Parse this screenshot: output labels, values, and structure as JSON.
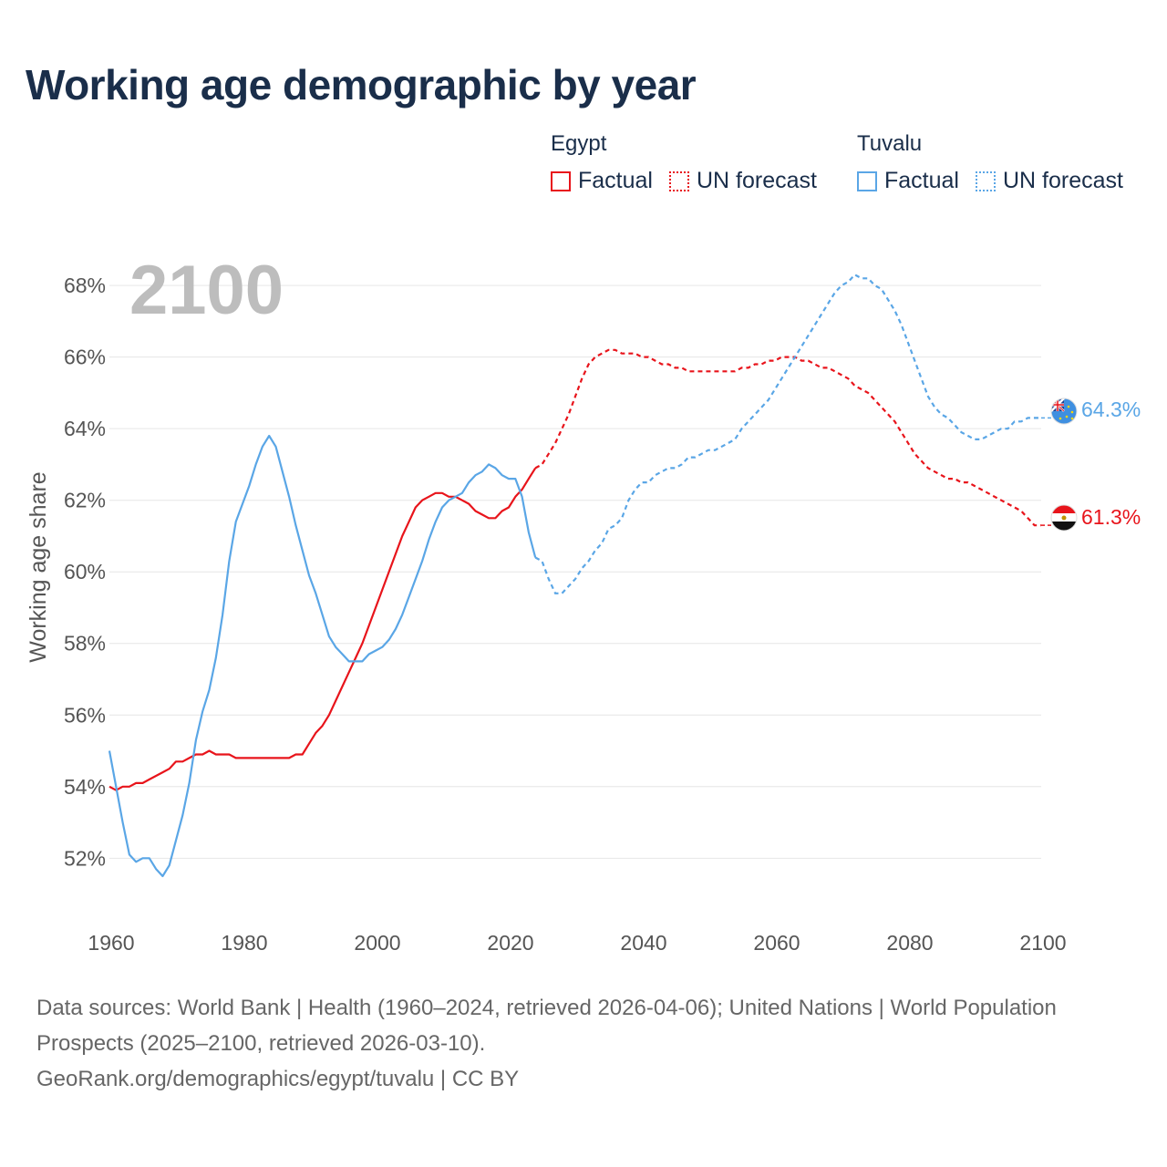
{
  "title": "Working age demographic by year",
  "year_overlay": "2100",
  "legend": {
    "groups": [
      {
        "name": "Egypt",
        "factual": "Factual",
        "forecast": "UN forecast",
        "color": "#e8141b"
      },
      {
        "name": "Tuvalu",
        "factual": "Factual",
        "forecast": "UN forecast",
        "color": "#5aa6e6"
      }
    ]
  },
  "source": {
    "line1": "Data sources: World Bank | Health (1960–2024, retrieved 2026-04-06); United Nations | World Population Prospects (2025–2100, retrieved 2026-03-10).",
    "line2": "GeoRank.org/demographics/egypt/tuvalu | CC BY"
  },
  "chart_data": {
    "type": "line",
    "ylabel": "Working age share",
    "xlabel": "",
    "xlim": [
      1960,
      2100
    ],
    "ylim": [
      50.2,
      69.2
    ],
    "x_ticks": [
      1960,
      1980,
      2000,
      2020,
      2040,
      2060,
      2080,
      2100
    ],
    "y_ticks": [
      52,
      54,
      56,
      58,
      60,
      62,
      64,
      66,
      68
    ],
    "y_tick_suffix": "%",
    "factual_end_year": 2024,
    "series": [
      {
        "name": "Egypt",
        "color": "#e8141b",
        "end_label": "61.3%",
        "points": [
          [
            1960,
            54.0
          ],
          [
            1961,
            53.9
          ],
          [
            1962,
            54.0
          ],
          [
            1963,
            54.0
          ],
          [
            1964,
            54.1
          ],
          [
            1965,
            54.1
          ],
          [
            1966,
            54.2
          ],
          [
            1967,
            54.3
          ],
          [
            1968,
            54.4
          ],
          [
            1969,
            54.5
          ],
          [
            1970,
            54.7
          ],
          [
            1971,
            54.7
          ],
          [
            1972,
            54.8
          ],
          [
            1973,
            54.9
          ],
          [
            1974,
            54.9
          ],
          [
            1975,
            55.0
          ],
          [
            1976,
            54.9
          ],
          [
            1977,
            54.9
          ],
          [
            1978,
            54.9
          ],
          [
            1979,
            54.8
          ],
          [
            1980,
            54.8
          ],
          [
            1981,
            54.8
          ],
          [
            1982,
            54.8
          ],
          [
            1983,
            54.8
          ],
          [
            1984,
            54.8
          ],
          [
            1985,
            54.8
          ],
          [
            1986,
            54.8
          ],
          [
            1987,
            54.8
          ],
          [
            1988,
            54.9
          ],
          [
            1989,
            54.9
          ],
          [
            1990,
            55.2
          ],
          [
            1991,
            55.5
          ],
          [
            1992,
            55.7
          ],
          [
            1993,
            56.0
          ],
          [
            1994,
            56.4
          ],
          [
            1995,
            56.8
          ],
          [
            1996,
            57.2
          ],
          [
            1997,
            57.6
          ],
          [
            1998,
            58.0
          ],
          [
            1999,
            58.5
          ],
          [
            2000,
            59.0
          ],
          [
            2001,
            59.5
          ],
          [
            2002,
            60.0
          ],
          [
            2003,
            60.5
          ],
          [
            2004,
            61.0
          ],
          [
            2005,
            61.4
          ],
          [
            2006,
            61.8
          ],
          [
            2007,
            62.0
          ],
          [
            2008,
            62.1
          ],
          [
            2009,
            62.2
          ],
          [
            2010,
            62.2
          ],
          [
            2011,
            62.1
          ],
          [
            2012,
            62.1
          ],
          [
            2013,
            62.0
          ],
          [
            2014,
            61.9
          ],
          [
            2015,
            61.7
          ],
          [
            2016,
            61.6
          ],
          [
            2017,
            61.5
          ],
          [
            2018,
            61.5
          ],
          [
            2019,
            61.7
          ],
          [
            2020,
            61.8
          ],
          [
            2021,
            62.1
          ],
          [
            2022,
            62.3
          ],
          [
            2023,
            62.6
          ],
          [
            2024,
            62.9
          ],
          [
            2025,
            63.0
          ],
          [
            2026,
            63.3
          ],
          [
            2027,
            63.6
          ],
          [
            2028,
            64.0
          ],
          [
            2029,
            64.4
          ],
          [
            2030,
            64.9
          ],
          [
            2031,
            65.4
          ],
          [
            2032,
            65.8
          ],
          [
            2033,
            66.0
          ],
          [
            2034,
            66.1
          ],
          [
            2035,
            66.2
          ],
          [
            2036,
            66.2
          ],
          [
            2037,
            66.1
          ],
          [
            2038,
            66.1
          ],
          [
            2039,
            66.1
          ],
          [
            2040,
            66.0
          ],
          [
            2041,
            66.0
          ],
          [
            2042,
            65.9
          ],
          [
            2043,
            65.8
          ],
          [
            2044,
            65.8
          ],
          [
            2045,
            65.7
          ],
          [
            2046,
            65.7
          ],
          [
            2047,
            65.6
          ],
          [
            2048,
            65.6
          ],
          [
            2049,
            65.6
          ],
          [
            2050,
            65.6
          ],
          [
            2051,
            65.6
          ],
          [
            2052,
            65.6
          ],
          [
            2053,
            65.6
          ],
          [
            2054,
            65.6
          ],
          [
            2055,
            65.7
          ],
          [
            2056,
            65.7
          ],
          [
            2057,
            65.8
          ],
          [
            2058,
            65.8
          ],
          [
            2059,
            65.9
          ],
          [
            2060,
            65.9
          ],
          [
            2061,
            66.0
          ],
          [
            2062,
            66.0
          ],
          [
            2063,
            66.0
          ],
          [
            2064,
            65.9
          ],
          [
            2065,
            65.9
          ],
          [
            2066,
            65.8
          ],
          [
            2067,
            65.7
          ],
          [
            2068,
            65.7
          ],
          [
            2069,
            65.6
          ],
          [
            2070,
            65.5
          ],
          [
            2071,
            65.4
          ],
          [
            2072,
            65.2
          ],
          [
            2073,
            65.1
          ],
          [
            2074,
            65.0
          ],
          [
            2075,
            64.8
          ],
          [
            2076,
            64.6
          ],
          [
            2077,
            64.4
          ],
          [
            2078,
            64.2
          ],
          [
            2079,
            63.9
          ],
          [
            2080,
            63.6
          ],
          [
            2081,
            63.3
          ],
          [
            2082,
            63.1
          ],
          [
            2083,
            62.9
          ],
          [
            2084,
            62.8
          ],
          [
            2085,
            62.7
          ],
          [
            2086,
            62.6
          ],
          [
            2087,
            62.6
          ],
          [
            2088,
            62.5
          ],
          [
            2089,
            62.5
          ],
          [
            2090,
            62.4
          ],
          [
            2091,
            62.3
          ],
          [
            2092,
            62.2
          ],
          [
            2093,
            62.1
          ],
          [
            2094,
            62.0
          ],
          [
            2095,
            61.9
          ],
          [
            2096,
            61.8
          ],
          [
            2097,
            61.7
          ],
          [
            2098,
            61.5
          ],
          [
            2099,
            61.3
          ],
          [
            2100,
            61.3
          ]
        ]
      },
      {
        "name": "Tuvalu",
        "color": "#5aa6e6",
        "end_label": "64.3%",
        "points": [
          [
            1960,
            55.0
          ],
          [
            1961,
            54.0
          ],
          [
            1962,
            53.0
          ],
          [
            1963,
            52.1
          ],
          [
            1964,
            51.9
          ],
          [
            1965,
            52.0
          ],
          [
            1966,
            52.0
          ],
          [
            1967,
            51.7
          ],
          [
            1968,
            51.5
          ],
          [
            1969,
            51.8
          ],
          [
            1970,
            52.5
          ],
          [
            1971,
            53.2
          ],
          [
            1972,
            54.1
          ],
          [
            1973,
            55.3
          ],
          [
            1974,
            56.1
          ],
          [
            1975,
            56.7
          ],
          [
            1976,
            57.6
          ],
          [
            1977,
            58.8
          ],
          [
            1978,
            60.3
          ],
          [
            1979,
            61.4
          ],
          [
            1980,
            61.9
          ],
          [
            1981,
            62.4
          ],
          [
            1982,
            63.0
          ],
          [
            1983,
            63.5
          ],
          [
            1984,
            63.8
          ],
          [
            1985,
            63.5
          ],
          [
            1986,
            62.8
          ],
          [
            1987,
            62.1
          ],
          [
            1988,
            61.3
          ],
          [
            1989,
            60.6
          ],
          [
            1990,
            59.9
          ],
          [
            1991,
            59.4
          ],
          [
            1992,
            58.8
          ],
          [
            1993,
            58.2
          ],
          [
            1994,
            57.9
          ],
          [
            1995,
            57.7
          ],
          [
            1996,
            57.5
          ],
          [
            1997,
            57.5
          ],
          [
            1998,
            57.5
          ],
          [
            1999,
            57.7
          ],
          [
            2000,
            57.8
          ],
          [
            2001,
            57.9
          ],
          [
            2002,
            58.1
          ],
          [
            2003,
            58.4
          ],
          [
            2004,
            58.8
          ],
          [
            2005,
            59.3
          ],
          [
            2006,
            59.8
          ],
          [
            2007,
            60.3
          ],
          [
            2008,
            60.9
          ],
          [
            2009,
            61.4
          ],
          [
            2010,
            61.8
          ],
          [
            2011,
            62.0
          ],
          [
            2012,
            62.1
          ],
          [
            2013,
            62.2
          ],
          [
            2014,
            62.5
          ],
          [
            2015,
            62.7
          ],
          [
            2016,
            62.8
          ],
          [
            2017,
            63.0
          ],
          [
            2018,
            62.9
          ],
          [
            2019,
            62.7
          ],
          [
            2020,
            62.6
          ],
          [
            2021,
            62.6
          ],
          [
            2022,
            62.1
          ],
          [
            2023,
            61.1
          ],
          [
            2024,
            60.4
          ],
          [
            2025,
            60.3
          ],
          [
            2026,
            59.8
          ],
          [
            2027,
            59.4
          ],
          [
            2028,
            59.4
          ],
          [
            2029,
            59.6
          ],
          [
            2030,
            59.8
          ],
          [
            2031,
            60.1
          ],
          [
            2032,
            60.3
          ],
          [
            2033,
            60.6
          ],
          [
            2034,
            60.8
          ],
          [
            2035,
            61.2
          ],
          [
            2036,
            61.3
          ],
          [
            2037,
            61.5
          ],
          [
            2038,
            62.0
          ],
          [
            2039,
            62.3
          ],
          [
            2040,
            62.5
          ],
          [
            2041,
            62.5
          ],
          [
            2042,
            62.7
          ],
          [
            2043,
            62.8
          ],
          [
            2044,
            62.9
          ],
          [
            2045,
            62.9
          ],
          [
            2046,
            63.0
          ],
          [
            2047,
            63.2
          ],
          [
            2048,
            63.2
          ],
          [
            2049,
            63.3
          ],
          [
            2050,
            63.4
          ],
          [
            2051,
            63.4
          ],
          [
            2052,
            63.5
          ],
          [
            2053,
            63.6
          ],
          [
            2054,
            63.7
          ],
          [
            2055,
            64.0
          ],
          [
            2056,
            64.2
          ],
          [
            2057,
            64.4
          ],
          [
            2058,
            64.6
          ],
          [
            2059,
            64.8
          ],
          [
            2060,
            65.1
          ],
          [
            2061,
            65.4
          ],
          [
            2062,
            65.7
          ],
          [
            2063,
            66.0
          ],
          [
            2064,
            66.3
          ],
          [
            2065,
            66.6
          ],
          [
            2066,
            66.9
          ],
          [
            2067,
            67.2
          ],
          [
            2068,
            67.5
          ],
          [
            2069,
            67.8
          ],
          [
            2070,
            68.0
          ],
          [
            2071,
            68.1
          ],
          [
            2072,
            68.3
          ],
          [
            2073,
            68.2
          ],
          [
            2074,
            68.2
          ],
          [
            2075,
            68.0
          ],
          [
            2076,
            67.9
          ],
          [
            2077,
            67.6
          ],
          [
            2078,
            67.3
          ],
          [
            2079,
            66.9
          ],
          [
            2080,
            66.4
          ],
          [
            2081,
            65.9
          ],
          [
            2082,
            65.4
          ],
          [
            2083,
            64.9
          ],
          [
            2084,
            64.6
          ],
          [
            2085,
            64.4
          ],
          [
            2086,
            64.3
          ],
          [
            2087,
            64.1
          ],
          [
            2088,
            63.9
          ],
          [
            2089,
            63.8
          ],
          [
            2090,
            63.7
          ],
          [
            2091,
            63.7
          ],
          [
            2092,
            63.8
          ],
          [
            2093,
            63.9
          ],
          [
            2094,
            64.0
          ],
          [
            2095,
            64.0
          ],
          [
            2096,
            64.2
          ],
          [
            2097,
            64.2
          ],
          [
            2098,
            64.3
          ],
          [
            2099,
            64.3
          ],
          [
            2100,
            64.3
          ]
        ]
      }
    ]
  }
}
